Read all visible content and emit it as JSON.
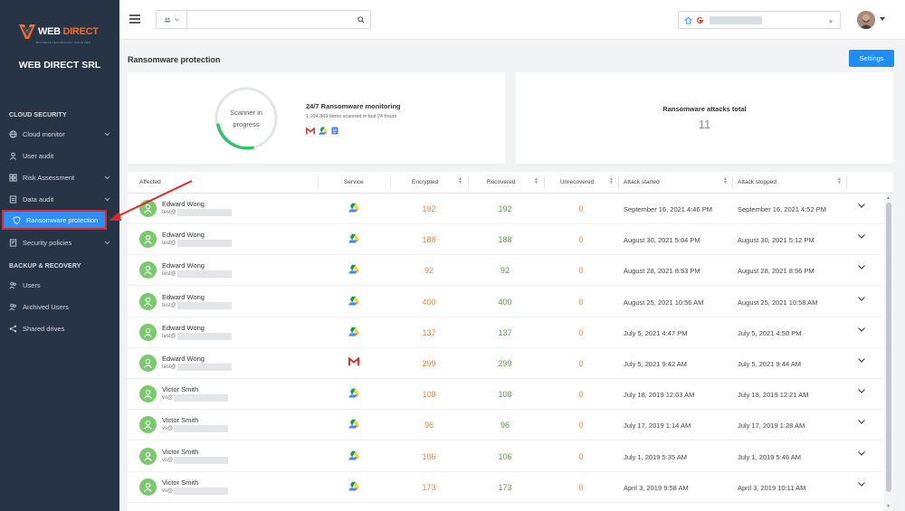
{
  "brand": {
    "logo_web": "WEB",
    "logo_direct": "DIRECT",
    "logo_tagline": "BUSINESS TECHNOLOGY SINCE 2003",
    "org_name": "WEB DIRECT SRL"
  },
  "sidebar": {
    "section_cloud": "CLOUD SECURITY",
    "section_backup": "BACKUP & RECOVERY",
    "items": [
      {
        "label": "Cloud monitor",
        "icon": "globe-icon",
        "expandable": true
      },
      {
        "label": "User audit",
        "icon": "user-icon",
        "expandable": false
      },
      {
        "label": "Risk Assessment",
        "icon": "grid-icon",
        "expandable": true
      },
      {
        "label": "Data audit",
        "icon": "document-icon",
        "expandable": true
      },
      {
        "label": "Ransomware protection",
        "icon": "shield-icon",
        "expandable": false,
        "active": true
      },
      {
        "label": "Security policies",
        "icon": "policy-icon",
        "expandable": true
      },
      {
        "label": "Users",
        "icon": "users-icon",
        "expandable": false
      },
      {
        "label": "Archived Users",
        "icon": "archived-users-icon",
        "expandable": false
      },
      {
        "label": "Shared drives",
        "icon": "share-icon",
        "expandable": false
      }
    ]
  },
  "topbar": {
    "search_placeholder": "",
    "domain_value": ""
  },
  "page": {
    "title": "Ransomware protection",
    "settings_label": "Settings"
  },
  "monitor": {
    "scanner_line1": "Scanner in",
    "scanner_line2": "progress",
    "title": "24/7 Ransomware monitoring",
    "subtitle": "1,094,869 items scanned in last 24 hours"
  },
  "totals": {
    "title": "Ransomware attacks total",
    "value": "11"
  },
  "table": {
    "headers": {
      "affected": "Affected",
      "service": "Service",
      "encrypted": "Encrypted",
      "recovered": "Recovered",
      "unrecovered": "Unrecovered",
      "attack_started": "Attack started",
      "attack_stopped": "Attack stopped"
    },
    "rows": [
      {
        "name": "Edward Wong",
        "email": "test@",
        "service": "google-drive",
        "encrypted": "192",
        "recovered": "192",
        "unrecovered": "0",
        "started": "September 16, 2021 4:46 PM",
        "stopped": "September 16, 2021 4:52 PM"
      },
      {
        "name": "Edward Wong",
        "email": "test@",
        "service": "google-drive",
        "encrypted": "188",
        "recovered": "188",
        "unrecovered": "0",
        "started": "August 30, 2021 5:04 PM",
        "stopped": "August 30, 2021 5:12 PM"
      },
      {
        "name": "Edward Wong",
        "email": "test@",
        "service": "google-drive",
        "encrypted": "92",
        "recovered": "92",
        "unrecovered": "0",
        "started": "August 28, 2021 8:53 PM",
        "stopped": "August 28, 2021 8:56 PM"
      },
      {
        "name": "Edward Wong",
        "email": "test@",
        "service": "google-drive",
        "encrypted": "400",
        "recovered": "400",
        "unrecovered": "0",
        "started": "August 25, 2021 10:56 AM",
        "stopped": "August 25, 2021 10:58 AM"
      },
      {
        "name": "Edward Wong",
        "email": "test@",
        "service": "google-drive",
        "encrypted": "137",
        "recovered": "137",
        "unrecovered": "0",
        "started": "July 5, 2021 4:47 PM",
        "stopped": "July 5, 2021 4:50 PM"
      },
      {
        "name": "Edward Wong",
        "email": "test@",
        "service": "gmail",
        "encrypted": "299",
        "recovered": "299",
        "unrecovered": "0",
        "started": "July 5, 2021 9:42 AM",
        "stopped": "July 5, 2021 9:44 AM"
      },
      {
        "name": "Victor Smith",
        "email": "vs@",
        "service": "google-drive",
        "encrypted": "108",
        "recovered": "108",
        "unrecovered": "0",
        "started": "July 18, 2019 12:03 AM",
        "stopped": "July 18, 2019 12:21 AM"
      },
      {
        "name": "Victor Smith",
        "email": "vs@",
        "service": "google-drive",
        "encrypted": "96",
        "recovered": "96",
        "unrecovered": "0",
        "started": "July 17, 2019 1:14 AM",
        "stopped": "July 17, 2019 1:28 AM"
      },
      {
        "name": "Victor Smith",
        "email": "vs@",
        "service": "google-drive",
        "encrypted": "106",
        "recovered": "106",
        "unrecovered": "0",
        "started": "July 1, 2019 5:35 AM",
        "stopped": "July 1, 2019 5:46 AM"
      },
      {
        "name": "Victor Smith",
        "email": "vs@",
        "service": "google-drive",
        "encrypted": "173",
        "recovered": "173",
        "unrecovered": "0",
        "started": "April 3, 2019 9:58 AM",
        "stopped": "April 3, 2019 10:11 AM"
      }
    ]
  },
  "colors": {
    "sidebar_bg": "#263445",
    "accent": "#1e8ef3",
    "encrypted": "#f0863a",
    "recovered": "#5a9a3e",
    "annotation": "#e0262b"
  }
}
